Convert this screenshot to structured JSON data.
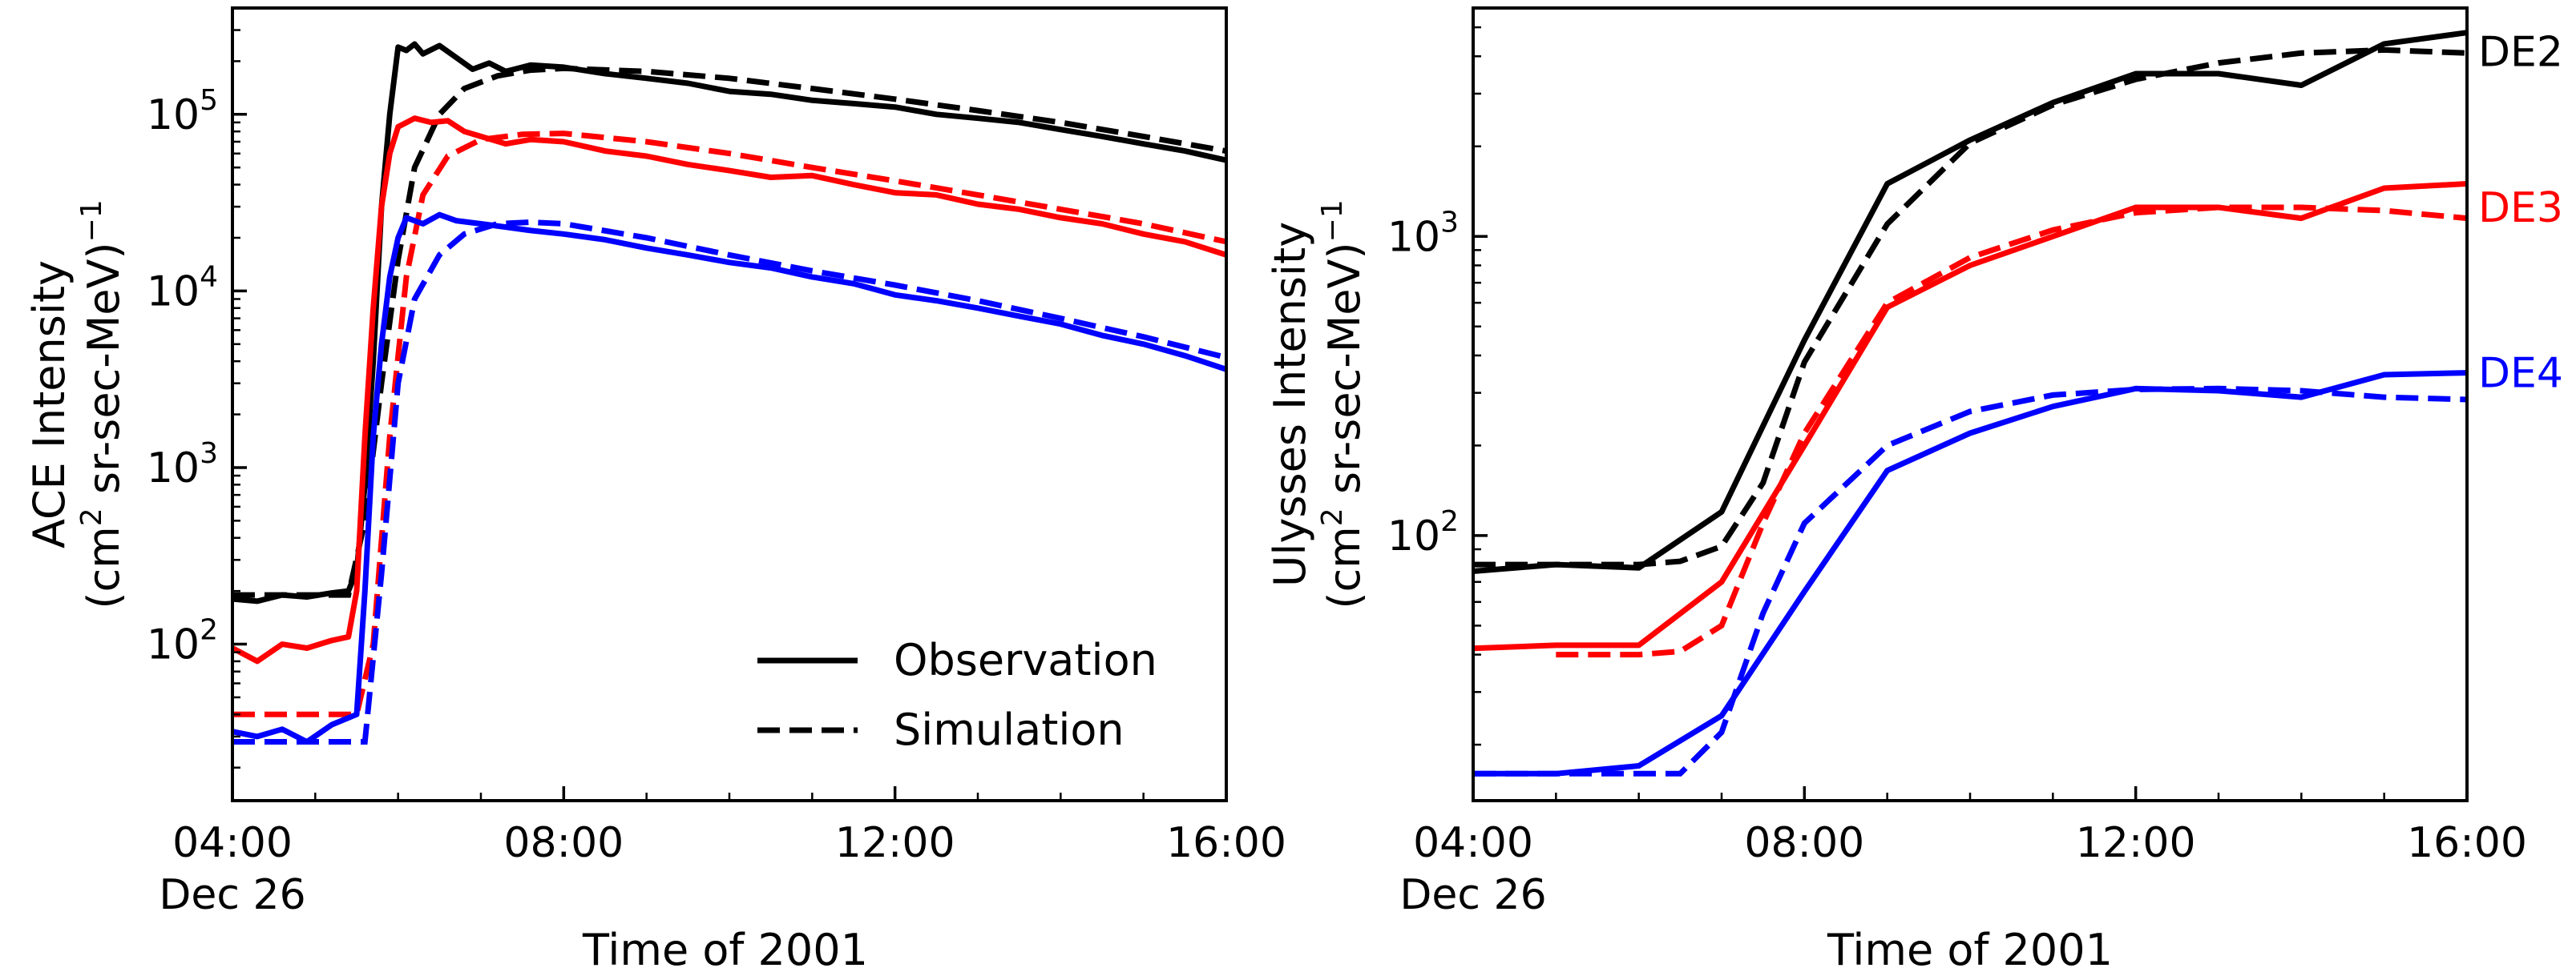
{
  "chart_data": [
    {
      "type": "line",
      "panel": "left",
      "xlabel": "Time of 2001",
      "ylabel_line1": "ACE Intensity",
      "ylabel_line2_pre": "(cm",
      "ylabel_sup": "2",
      "ylabel_line2_mid": " sr-sec-MeV)",
      "ylabel_sup2": "−1",
      "xlim": [
        4,
        16
      ],
      "ylim": [
        13,
        400000
      ],
      "yscale": "log",
      "x_ticks": [
        {
          "value": 4,
          "label": "04:00",
          "sublabel": "Dec 26"
        },
        {
          "value": 8,
          "label": "08:00",
          "sublabel": ""
        },
        {
          "value": 12,
          "label": "12:00",
          "sublabel": ""
        },
        {
          "value": 16,
          "label": "16:00",
          "sublabel": ""
        }
      ],
      "y_ticks": [
        {
          "value": 100,
          "base": "10",
          "exp": "2"
        },
        {
          "value": 1000,
          "base": "10",
          "exp": "3"
        },
        {
          "value": 10000,
          "base": "10",
          "exp": "4"
        },
        {
          "value": 100000,
          "base": "10",
          "exp": "5"
        }
      ],
      "legend": {
        "placement": "lower-right",
        "entries": [
          {
            "label": "Observation",
            "style": "solid"
          },
          {
            "label": "Simulation",
            "style": "dashed"
          }
        ]
      },
      "series": [
        {
          "channel": "DE2",
          "kind": "observation",
          "color": "#000000",
          "x": [
            4.0,
            4.3,
            4.6,
            4.9,
            5.2,
            5.4,
            5.5,
            5.6,
            5.7,
            5.8,
            5.9,
            6.0,
            6.1,
            6.2,
            6.3,
            6.5,
            6.7,
            6.9,
            7.1,
            7.3,
            7.6,
            8.0,
            8.5,
            9.0,
            9.5,
            10.0,
            10.5,
            11.0,
            11.5,
            12.0,
            12.5,
            13.0,
            13.5,
            14.0,
            14.5,
            15.0,
            15.5,
            16.0
          ],
          "y": [
            180,
            175,
            190,
            185,
            195,
            200,
            260,
            800,
            4000,
            30000,
            100000,
            240000,
            230000,
            250000,
            220000,
            245000,
            210000,
            180000,
            195000,
            175000,
            190000,
            185000,
            170000,
            160000,
            150000,
            135000,
            130000,
            120000,
            115000,
            110000,
            100000,
            95000,
            90000,
            82000,
            75000,
            68000,
            62000,
            55000
          ]
        },
        {
          "channel": "DE2",
          "kind": "simulation",
          "color": "#000000",
          "x": [
            4.0,
            5.0,
            5.4,
            5.6,
            5.8,
            6.0,
            6.2,
            6.5,
            6.8,
            7.2,
            7.6,
            8.0,
            9.0,
            10.0,
            11.0,
            12.0,
            13.0,
            14.0,
            15.0,
            16.0
          ],
          "y": [
            190,
            190,
            190,
            500,
            3000,
            15000,
            50000,
            100000,
            140000,
            165000,
            178000,
            182000,
            175000,
            160000,
            140000,
            122000,
            105000,
            90000,
            75000,
            62000
          ]
        },
        {
          "channel": "DE3",
          "kind": "observation",
          "color": "#ff0000",
          "x": [
            4.0,
            4.3,
            4.6,
            4.9,
            5.2,
            5.4,
            5.5,
            5.6,
            5.7,
            5.8,
            5.9,
            6.0,
            6.2,
            6.4,
            6.6,
            6.8,
            7.0,
            7.3,
            7.6,
            8.0,
            8.5,
            9.0,
            9.5,
            10.0,
            10.5,
            11.0,
            11.5,
            12.0,
            12.5,
            13.0,
            13.5,
            14.0,
            14.5,
            15.0,
            15.5,
            16.0
          ],
          "y": [
            95,
            80,
            100,
            95,
            105,
            110,
            200,
            1500,
            8000,
            30000,
            60000,
            85000,
            95000,
            90000,
            92000,
            80000,
            75000,
            68000,
            72000,
            70000,
            62000,
            58000,
            52000,
            48000,
            44000,
            45000,
            40000,
            36000,
            35000,
            31000,
            29000,
            26000,
            24000,
            21000,
            19000,
            16000
          ]
        },
        {
          "channel": "DE3",
          "kind": "simulation",
          "color": "#ff0000",
          "x": [
            4.0,
            5.0,
            5.5,
            5.7,
            5.9,
            6.1,
            6.3,
            6.6,
            7.0,
            7.5,
            8.0,
            9.0,
            10.0,
            11.0,
            12.0,
            13.0,
            14.0,
            15.0,
            16.0
          ],
          "y": [
            40,
            40,
            40,
            100,
            1500,
            12000,
            35000,
            58000,
            72000,
            77000,
            78000,
            70000,
            60000,
            50000,
            42000,
            35000,
            29000,
            24000,
            19000
          ]
        },
        {
          "channel": "DE4",
          "kind": "observation",
          "color": "#0000ff",
          "x": [
            4.0,
            4.3,
            4.6,
            4.9,
            5.2,
            5.5,
            5.6,
            5.7,
            5.8,
            5.9,
            6.0,
            6.1,
            6.3,
            6.5,
            6.7,
            7.0,
            7.3,
            7.6,
            8.0,
            8.5,
            9.0,
            9.5,
            10.0,
            10.5,
            11.0,
            11.5,
            12.0,
            12.5,
            13.0,
            13.5,
            14.0,
            14.5,
            15.0,
            15.5,
            16.0
          ],
          "y": [
            32,
            30,
            33,
            28,
            35,
            40,
            200,
            1500,
            5000,
            12000,
            20000,
            26000,
            24000,
            27000,
            25000,
            24000,
            23000,
            22000,
            21000,
            19500,
            17500,
            16000,
            14500,
            13500,
            12000,
            11000,
            9500,
            8800,
            8000,
            7200,
            6500,
            5600,
            5000,
            4300,
            3600
          ]
        },
        {
          "channel": "DE4",
          "kind": "simulation",
          "color": "#0000ff",
          "x": [
            4.0,
            5.0,
            5.6,
            5.8,
            6.0,
            6.2,
            6.5,
            6.8,
            7.2,
            7.6,
            8.0,
            9.0,
            10.0,
            11.0,
            12.0,
            13.0,
            14.0,
            15.0,
            16.0
          ],
          "y": [
            28,
            28,
            28,
            250,
            3000,
            9000,
            16000,
            21000,
            24000,
            24500,
            24000,
            20000,
            16000,
            13000,
            10800,
            8800,
            7000,
            5500,
            4200
          ]
        }
      ]
    },
    {
      "type": "line",
      "panel": "right",
      "xlabel": "Time of 2001",
      "ylabel_line1": "Ulysses Intensity",
      "ylabel_line2_pre": "(cm",
      "ylabel_sup": "2",
      "ylabel_line2_mid": " sr-sec-MeV)",
      "ylabel_sup2": "−1",
      "xlim": [
        4,
        16
      ],
      "ylim": [
        13,
        5800
      ],
      "yscale": "log",
      "x_ticks": [
        {
          "value": 4,
          "label": "04:00",
          "sublabel": "Dec 26"
        },
        {
          "value": 8,
          "label": "08:00",
          "sublabel": ""
        },
        {
          "value": 12,
          "label": "12:00",
          "sublabel": ""
        },
        {
          "value": 16,
          "label": "16:00",
          "sublabel": ""
        }
      ],
      "y_ticks": [
        {
          "value": 100,
          "base": "10",
          "exp": "2"
        },
        {
          "value": 1000,
          "base": "10",
          "exp": "3"
        }
      ],
      "series": [
        {
          "channel": "DE2",
          "kind": "observation",
          "color": "#000000",
          "x": [
            4,
            5,
            6,
            7,
            8,
            9,
            10,
            11,
            12,
            13,
            14,
            15,
            16
          ],
          "y": [
            76,
            80,
            78,
            120,
            450,
            1500,
            2100,
            2800,
            3500,
            3500,
            3200,
            4400,
            4800
          ]
        },
        {
          "channel": "DE2",
          "kind": "simulation",
          "color": "#000000",
          "x": [
            4,
            5,
            6,
            6.5,
            7,
            7.5,
            8,
            9,
            10,
            11,
            12,
            13,
            14,
            15,
            16
          ],
          "y": [
            80,
            80,
            80,
            82,
            92,
            150,
            380,
            1100,
            2050,
            2750,
            3350,
            3800,
            4100,
            4200,
            4100
          ]
        },
        {
          "channel": "DE3",
          "kind": "observation",
          "color": "#ff0000",
          "x": [
            4,
            5,
            6,
            7,
            8,
            9,
            10,
            11,
            12,
            13,
            14,
            15,
            16
          ],
          "y": [
            42,
            43,
            43,
            70,
            200,
            580,
            800,
            1000,
            1250,
            1250,
            1150,
            1450,
            1500
          ]
        },
        {
          "channel": "DE3",
          "kind": "simulation",
          "color": "#ff0000",
          "x": [
            5,
            6,
            6.5,
            7,
            7.5,
            8,
            9,
            10,
            11,
            12,
            13,
            14,
            15,
            16
          ],
          "y": [
            40,
            40,
            41,
            50,
            110,
            220,
            600,
            850,
            1050,
            1200,
            1250,
            1250,
            1220,
            1150
          ]
        },
        {
          "channel": "DE4",
          "kind": "observation",
          "color": "#0000ff",
          "x": [
            4,
            5,
            6,
            7,
            8,
            9,
            10,
            11,
            12,
            13,
            14,
            15,
            16
          ],
          "y": [
            16,
            16,
            17,
            25,
            65,
            165,
            220,
            270,
            310,
            305,
            290,
            345,
            350
          ]
        },
        {
          "channel": "DE4",
          "kind": "simulation",
          "color": "#0000ff",
          "x": [
            4,
            5,
            6,
            6.5,
            7,
            7.5,
            8,
            9,
            10,
            11,
            12,
            13,
            14,
            15,
            16
          ],
          "y": [
            16,
            16,
            16,
            16,
            22,
            55,
            110,
            200,
            260,
            295,
            308,
            310,
            305,
            290,
            285
          ]
        }
      ],
      "channel_labels": [
        {
          "label": "DE2",
          "color": "#000000",
          "at_value": 4150
        },
        {
          "label": "DE3",
          "color": "#ff0000",
          "at_value": 1250
        },
        {
          "label": "DE4",
          "color": "#0000ff",
          "at_value": 350
        }
      ]
    }
  ]
}
